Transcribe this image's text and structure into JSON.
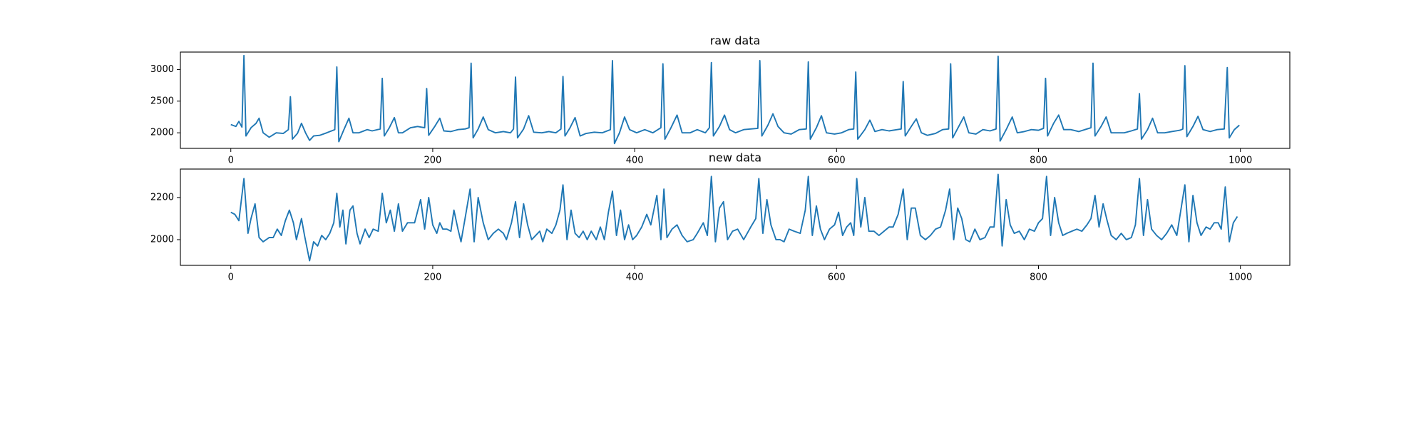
{
  "chart_data": [
    {
      "type": "line",
      "title": "raw data",
      "color": "#1f77b4",
      "x": [
        0,
        5,
        8,
        11,
        13,
        15,
        20,
        25,
        28,
        32,
        38,
        45,
        52,
        57,
        59,
        61,
        66,
        70,
        74,
        78,
        82,
        88,
        95,
        103,
        105,
        107,
        112,
        117,
        121,
        127,
        135,
        140,
        148,
        150,
        152,
        157,
        162,
        166,
        170,
        178,
        185,
        192,
        194,
        196,
        202,
        207,
        211,
        218,
        225,
        232,
        236,
        238,
        240,
        245,
        250,
        255,
        262,
        270,
        277,
        280,
        282,
        284,
        290,
        295,
        300,
        308,
        315,
        322,
        327,
        329,
        331,
        336,
        341,
        346,
        352,
        360,
        368,
        376,
        378,
        380,
        385,
        390,
        395,
        402,
        410,
        418,
        426,
        428,
        430,
        436,
        442,
        447,
        455,
        462,
        470,
        474,
        476,
        478,
        484,
        489,
        494,
        500,
        508,
        515,
        522,
        524,
        526,
        532,
        537,
        542,
        548,
        555,
        563,
        570,
        572,
        574,
        580,
        585,
        590,
        598,
        605,
        612,
        617,
        619,
        621,
        628,
        633,
        638,
        645,
        652,
        660,
        664,
        666,
        668,
        674,
        679,
        684,
        690,
        698,
        705,
        711,
        713,
        715,
        721,
        726,
        731,
        738,
        745,
        752,
        758,
        760,
        762,
        768,
        774,
        779,
        786,
        793,
        800,
        805,
        807,
        809,
        815,
        820,
        825,
        832,
        840,
        848,
        852,
        854,
        856,
        862,
        867,
        872,
        878,
        885,
        892,
        898,
        900,
        902,
        908,
        913,
        918,
        925,
        932,
        940,
        943,
        945,
        947,
        953,
        958,
        963,
        970,
        977,
        984,
        987,
        989,
        994,
        999
      ],
      "values": [
        2130,
        2100,
        2180,
        2090,
        3220,
        1950,
        2080,
        2150,
        2230,
        2000,
        1930,
        2000,
        1990,
        2050,
        2570,
        1900,
        1990,
        2150,
        2000,
        1880,
        1950,
        1960,
        2000,
        2050,
        3040,
        1860,
        2050,
        2230,
        2000,
        2000,
        2050,
        2030,
        2060,
        2860,
        1950,
        2080,
        2240,
        2000,
        2000,
        2080,
        2100,
        2080,
        2700,
        1960,
        2100,
        2230,
        2030,
        2020,
        2050,
        2060,
        2080,
        3100,
        1920,
        2060,
        2250,
        2050,
        2000,
        2020,
        2000,
        2060,
        2880,
        1920,
        2060,
        2270,
        2010,
        2000,
        2020,
        2000,
        2060,
        2890,
        1950,
        2080,
        2240,
        1950,
        1990,
        2010,
        2000,
        2050,
        3140,
        1830,
        2000,
        2250,
        2050,
        2000,
        2050,
        2000,
        2080,
        3090,
        1900,
        2080,
        2280,
        2000,
        2000,
        2050,
        2000,
        2080,
        3110,
        1950,
        2100,
        2280,
        2050,
        2000,
        2050,
        2060,
        2070,
        3140,
        1950,
        2120,
        2300,
        2100,
        2000,
        1980,
        2050,
        2060,
        3120,
        1900,
        2080,
        2270,
        2000,
        1980,
        2000,
        2050,
        2060,
        2960,
        1900,
        2050,
        2200,
        2020,
        2050,
        2030,
        2050,
        2060,
        2810,
        1950,
        2100,
        2220,
        2000,
        1960,
        1990,
        2050,
        2060,
        3090,
        1920,
        2100,
        2250,
        2000,
        1980,
        2050,
        2030,
        2060,
        3210,
        1870,
        2050,
        2250,
        2000,
        2020,
        2050,
        2040,
        2070,
        2860,
        1950,
        2150,
        2280,
        2050,
        2050,
        2020,
        2060,
        2080,
        3100,
        1950,
        2100,
        2250,
        2000,
        2000,
        2000,
        2030,
        2060,
        2620,
        1900,
        2050,
        2230,
        2000,
        2000,
        2020,
        2040,
        2060,
        3060,
        1940,
        2100,
        2260,
        2050,
        2020,
        2050,
        2060,
        3030,
        1920,
        2050,
        2120
      ],
      "xlim": [
        -49.95,
        1048.95
      ],
      "ylim": [
        1754,
        3275
      ],
      "xticks": [
        0,
        200,
        400,
        600,
        800,
        1000
      ],
      "yticks": [
        2000,
        2500,
        3000
      ]
    },
    {
      "type": "line",
      "title": "new data",
      "color": "#1f77b4",
      "x": [
        0,
        4,
        8,
        13,
        17,
        20,
        24,
        28,
        32,
        38,
        42,
        46,
        50,
        54,
        58,
        62,
        65,
        70,
        73,
        78,
        82,
        86,
        90,
        94,
        98,
        102,
        105,
        108,
        111,
        114,
        118,
        121,
        125,
        128,
        133,
        137,
        141,
        146,
        150,
        154,
        158,
        162,
        166,
        170,
        175,
        182,
        188,
        192,
        196,
        200,
        204,
        207,
        210,
        214,
        218,
        221,
        225,
        228,
        232,
        237,
        241,
        245,
        250,
        255,
        260,
        265,
        270,
        273,
        278,
        282,
        286,
        290,
        294,
        298,
        302,
        306,
        309,
        313,
        318,
        322,
        326,
        329,
        333,
        337,
        341,
        345,
        349,
        353,
        357,
        362,
        366,
        370,
        374,
        378,
        382,
        386,
        390,
        394,
        398,
        402,
        407,
        412,
        416,
        422,
        426,
        429,
        432,
        437,
        442,
        447,
        452,
        458,
        462,
        468,
        472,
        476,
        480,
        484,
        488,
        492,
        497,
        502,
        508,
        515,
        520,
        523,
        527,
        531,
        535,
        540,
        544,
        548,
        553,
        558,
        564,
        569,
        572,
        576,
        580,
        584,
        588,
        593,
        598,
        602,
        606,
        610,
        614,
        617,
        620,
        624,
        628,
        632,
        637,
        642,
        647,
        652,
        656,
        661,
        666,
        670,
        674,
        678,
        683,
        688,
        693,
        698,
        703,
        708,
        712,
        716,
        720,
        724,
        728,
        732,
        737,
        742,
        747,
        752,
        756,
        760,
        764,
        768,
        772,
        776,
        781,
        786,
        791,
        796,
        800,
        804,
        808,
        812,
        816,
        820,
        824,
        828,
        833,
        838,
        843,
        848,
        852,
        856,
        860,
        864,
        868,
        872,
        877,
        882,
        887,
        892,
        896,
        900,
        904,
        908,
        912,
        917,
        922,
        927,
        932,
        937,
        941,
        945,
        949,
        953,
        957,
        961,
        966,
        970,
        974,
        978,
        981,
        985,
        989,
        993,
        997
      ],
      "values": [
        2130,
        2120,
        2090,
        2290,
        2030,
        2100,
        2170,
        2010,
        1990,
        2010,
        2010,
        2050,
        2020,
        2090,
        2140,
        2080,
        2000,
        2100,
        2020,
        1900,
        1990,
        1970,
        2020,
        2000,
        2030,
        2080,
        2220,
        2060,
        2140,
        1980,
        2140,
        2160,
        2030,
        1980,
        2050,
        2010,
        2050,
        2040,
        2220,
        2080,
        2140,
        2040,
        2170,
        2040,
        2080,
        2080,
        2190,
        2050,
        2200,
        2070,
        2030,
        2080,
        2050,
        2050,
        2040,
        2140,
        2050,
        1990,
        2100,
        2240,
        1990,
        2200,
        2080,
        2000,
        2030,
        2050,
        2030,
        2000,
        2080,
        2180,
        2010,
        2170,
        2070,
        2000,
        2020,
        2040,
        1990,
        2050,
        2030,
        2070,
        2140,
        2260,
        2000,
        2140,
        2030,
        2010,
        2040,
        2000,
        2040,
        2000,
        2060,
        2000,
        2130,
        2230,
        2020,
        2140,
        2000,
        2070,
        2000,
        2020,
        2060,
        2120,
        2070,
        2210,
        2000,
        2240,
        2010,
        2050,
        2070,
        2020,
        1990,
        2000,
        2030,
        2080,
        2020,
        2300,
        1990,
        2150,
        2180,
        2000,
        2040,
        2050,
        2000,
        2060,
        2100,
        2290,
        2030,
        2190,
        2070,
        2000,
        2000,
        1990,
        2050,
        2040,
        2030,
        2140,
        2300,
        2020,
        2160,
        2050,
        2000,
        2050,
        2070,
        2130,
        2020,
        2060,
        2080,
        2020,
        2290,
        2060,
        2200,
        2040,
        2040,
        2020,
        2040,
        2060,
        2060,
        2120,
        2240,
        2000,
        2150,
        2150,
        2020,
        2000,
        2020,
        2050,
        2060,
        2140,
        2240,
        2000,
        2150,
        2100,
        2000,
        1990,
        2050,
        2000,
        2010,
        2060,
        2060,
        2310,
        1970,
        2190,
        2070,
        2030,
        2040,
        2000,
        2050,
        2040,
        2080,
        2100,
        2300,
        2020,
        2200,
        2080,
        2020,
        2030,
        2040,
        2050,
        2040,
        2070,
        2100,
        2210,
        2060,
        2170,
        2090,
        2020,
        2000,
        2030,
        2000,
        2010,
        2070,
        2290,
        2020,
        2190,
        2050,
        2020,
        2000,
        2030,
        2070,
        2020,
        2140,
        2260,
        1990,
        2210,
        2080,
        2020,
        2060,
        2050,
        2080,
        2080,
        2050,
        2250,
        1990,
        2080,
        2110
      ],
      "xlim": [
        -49.95,
        1048.95
      ],
      "ylim": [
        1878,
        2335
      ],
      "xticks": [
        0,
        200,
        400,
        600,
        800,
        1000
      ],
      "yticks": [
        2000,
        2200
      ]
    }
  ]
}
